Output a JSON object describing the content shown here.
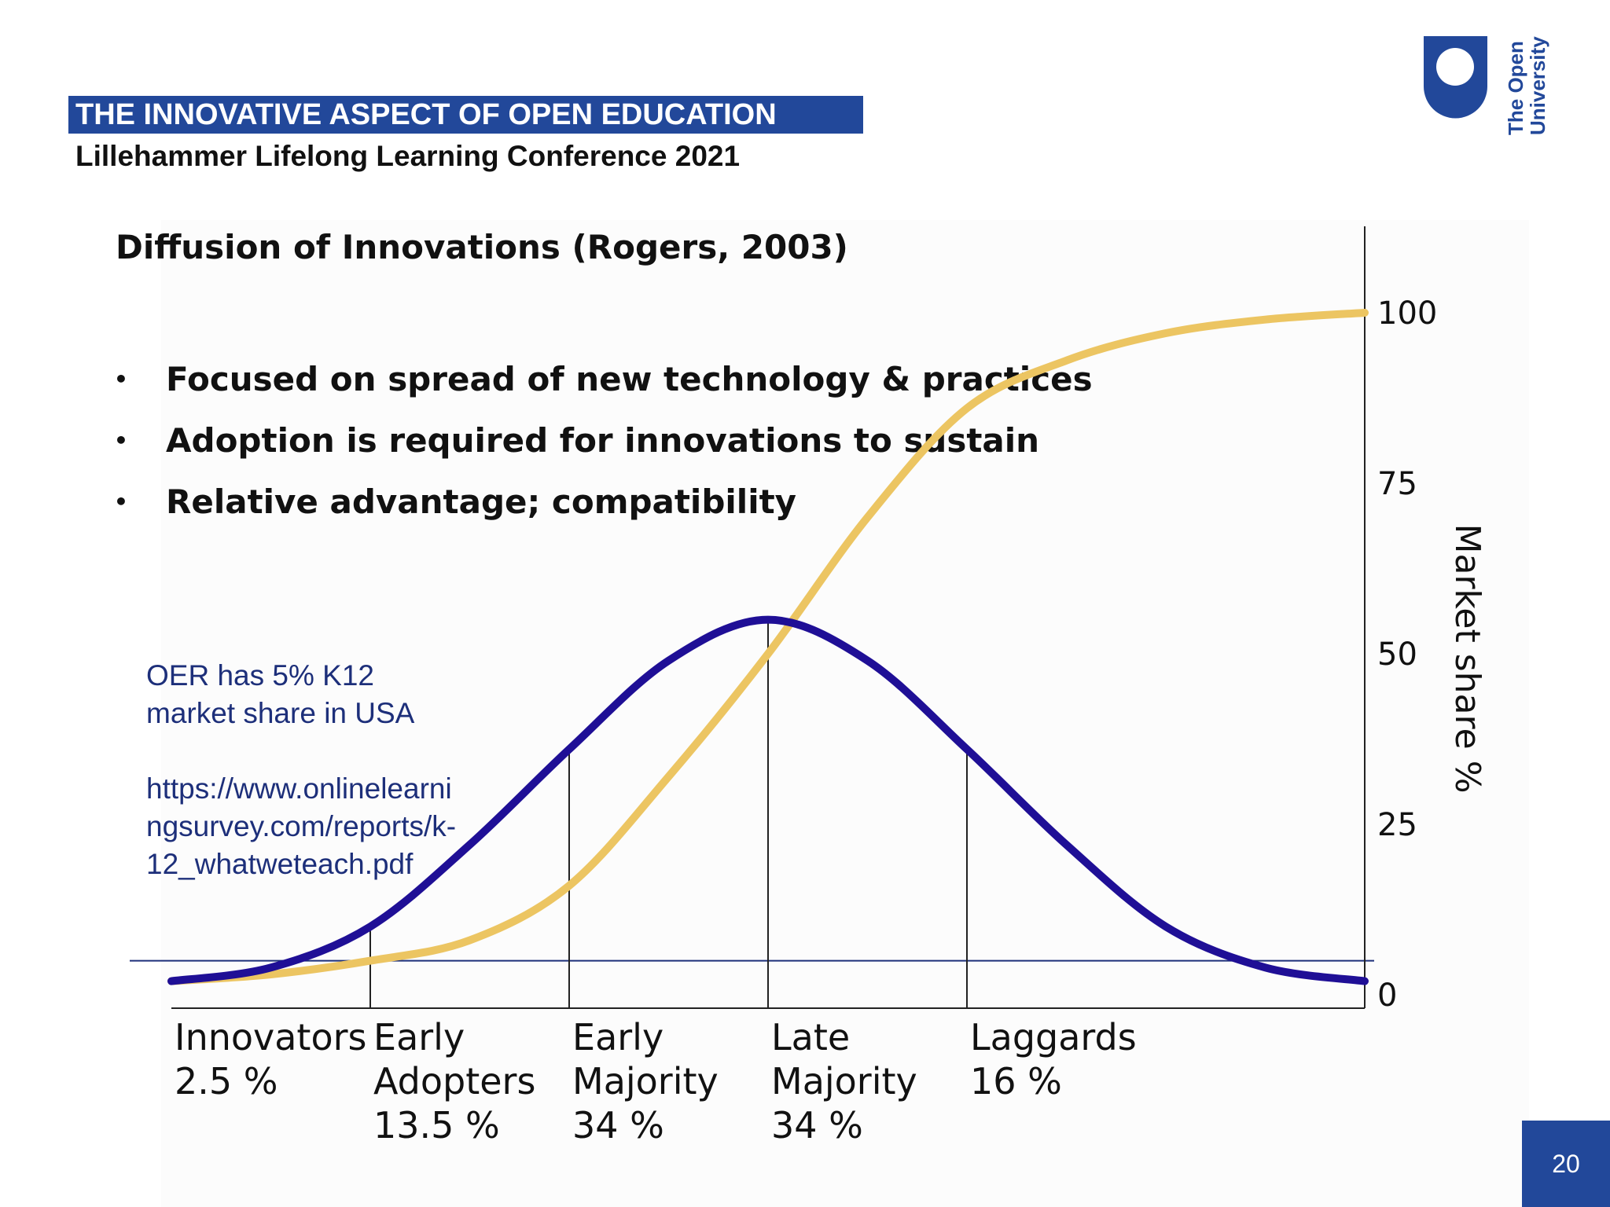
{
  "header": {
    "banner": "THE INNOVATIVE ASPECT OF OPEN EDUCATION",
    "subtitle": "Lillehammer Lifelong Learning Conference 2021",
    "logo_text": [
      "The Open",
      "University"
    ]
  },
  "slide": {
    "heading": "Diffusion of Innovations (Rogers, 2003)",
    "bullets": [
      "Focused on spread of new technology & practices",
      "Adoption is required for innovations to sustain",
      "Relative advantage; compatibility"
    ],
    "note_lines": [
      "OER has 5% K12",
      "market share in USA"
    ],
    "link_lines": [
      "https://www.onlinelearni",
      "ngsurvey.com/reports/k-",
      "12_whatweteach.pdf"
    ],
    "page_number": "20"
  },
  "colors": {
    "banner": "#22489a",
    "bell_curve": "#1f0f96",
    "s_curve": "#ecc562",
    "note_text": "#1d2f7a"
  },
  "chart_data": {
    "type": "line",
    "ylabel": "Market share %",
    "ylim": [
      0,
      100
    ],
    "y_ticks": [
      0,
      25,
      50,
      75,
      100
    ],
    "reference_line": 5,
    "series": [
      {
        "kind": "adoption-distribution",
        "x": [
          -3,
          -2.5,
          -2,
          -1.5,
          -1,
          -0.5,
          0,
          0.5,
          1,
          1.5,
          2,
          2.5,
          3
        ],
        "values": [
          2,
          4,
          10,
          22,
          36,
          49,
          55,
          49,
          36,
          22,
          10,
          4,
          2
        ]
      },
      {
        "kind": "cumulative-adoption",
        "x": [
          -3,
          -2.5,
          -2,
          -1.5,
          -1,
          -0.5,
          0,
          0.5,
          1,
          1.5,
          2,
          2.5,
          3
        ],
        "values": [
          2,
          3,
          5,
          8,
          16,
          32,
          50,
          70,
          86,
          93,
          97,
          99,
          100
        ]
      }
    ],
    "category_boundaries": [
      -3,
      -2,
      -1,
      0,
      1,
      3
    ],
    "categories": [
      {
        "lines": [
          "Innovators",
          "2.5 %"
        ]
      },
      {
        "lines": [
          "Early",
          "Adopters",
          "13.5 %"
        ]
      },
      {
        "lines": [
          "Early",
          "Majority",
          "34 %"
        ]
      },
      {
        "lines": [
          "Late",
          "Majority",
          "34 %"
        ]
      },
      {
        "lines": [
          "Laggards",
          "16 %"
        ]
      }
    ]
  }
}
